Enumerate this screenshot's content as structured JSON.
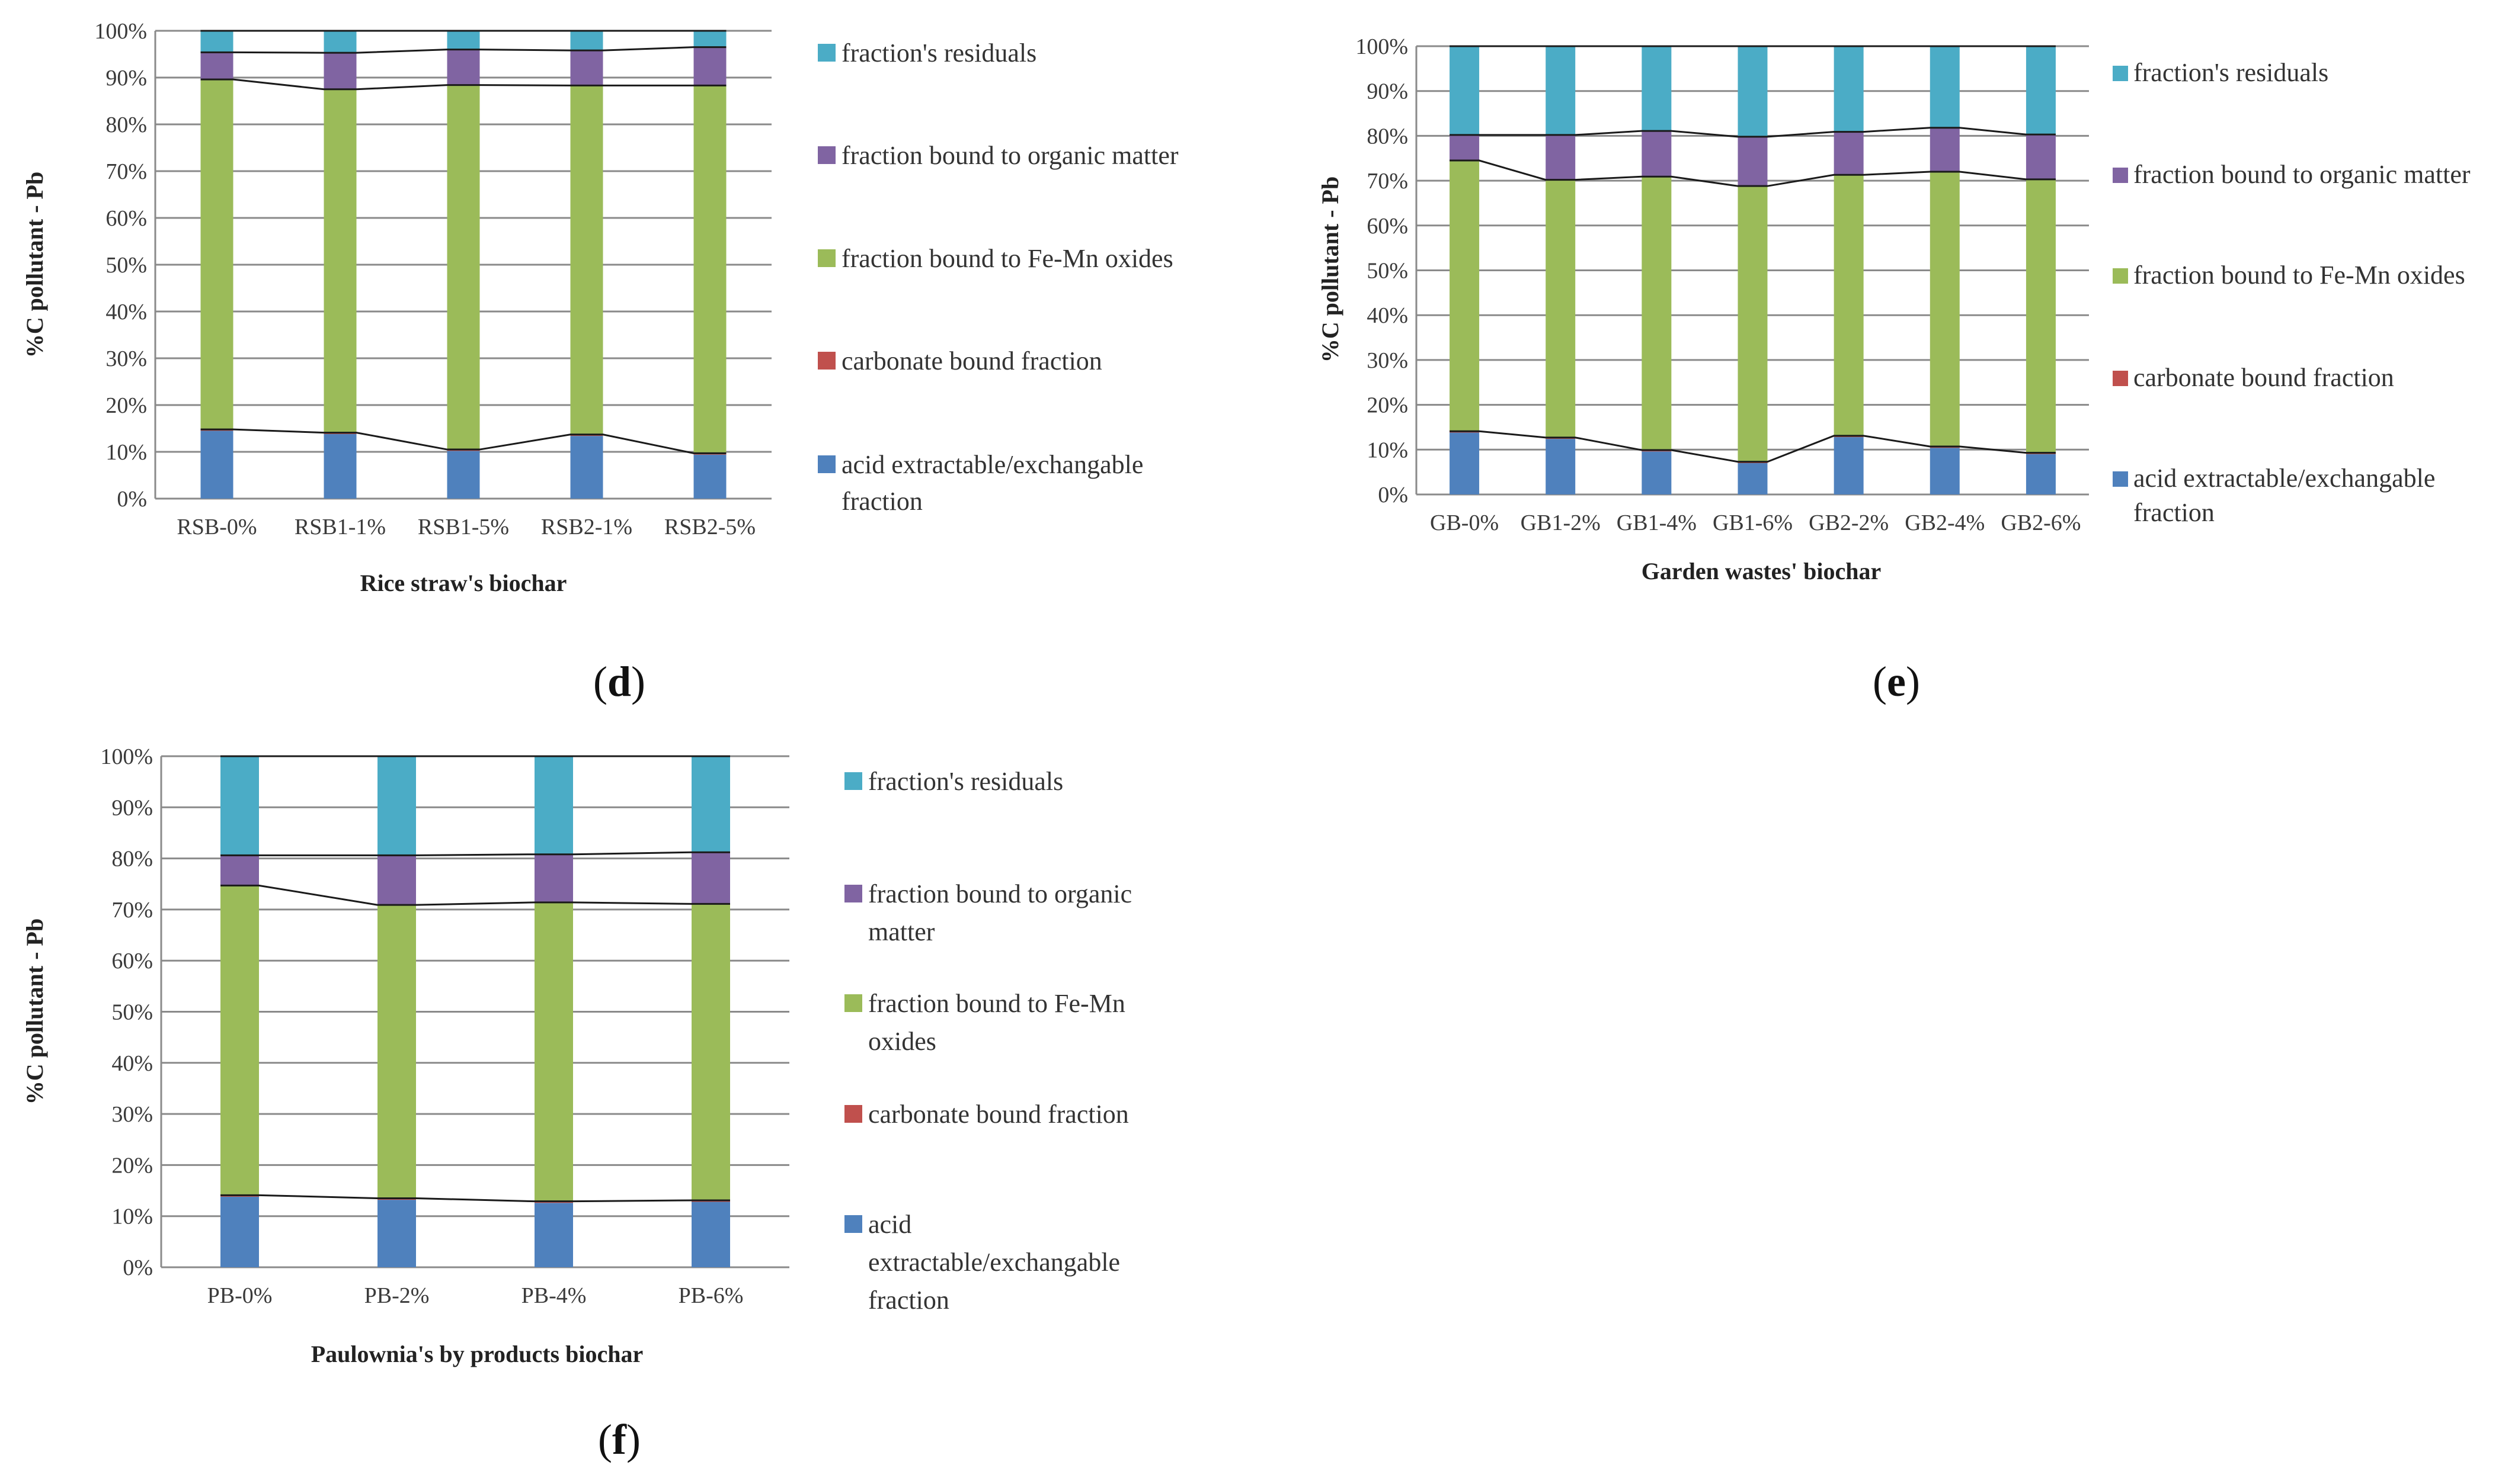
{
  "colors": {
    "residual": "#4BACC6",
    "organic": "#8064A2",
    "femn": "#9BBB59",
    "carbonate": "#C0504D",
    "acid": "#4F81BD",
    "grid": "#8a8a8a",
    "connector": "#1a1a1a"
  },
  "chart_data": [
    {
      "id": "d",
      "type": "bar",
      "stacked": true,
      "panel_label": {
        "open": "(",
        "letter": "d",
        "close": ")"
      },
      "title": "",
      "xlabel": "Rice straw's biochar",
      "ylabel": "%C pollutant - Pb",
      "ylim": [
        0,
        100
      ],
      "yticks": [
        "0%",
        "10%",
        "20%",
        "30%",
        "40%",
        "50%",
        "60%",
        "70%",
        "80%",
        "90%",
        "100%"
      ],
      "grid": true,
      "legend_position": "right",
      "categories": [
        "RSB-0%",
        "RSB1-1%",
        "RSB1-5%",
        "RSB2-1%",
        "RSB2-5%"
      ],
      "series": [
        {
          "key": "acid",
          "name": "acid extractable/exchangable fraction",
          "values": [
            14.5,
            13.8,
            10.2,
            13.4,
            9.4
          ]
        },
        {
          "key": "carbonate",
          "name": "carbonate bound fraction",
          "values": [
            0.3,
            0.3,
            0.3,
            0.3,
            0.3
          ]
        },
        {
          "key": "femn",
          "name": "fraction bound to Fe-Mn oxides",
          "values": [
            74.8,
            73.4,
            77.9,
            74.6,
            78.6
          ]
        },
        {
          "key": "organic",
          "name": "fraction bound to organic matter",
          "values": [
            5.8,
            7.8,
            7.6,
            7.5,
            8.2
          ]
        },
        {
          "key": "residual",
          "name": "fraction's residuals",
          "values": [
            4.6,
            4.7,
            4.0,
            4.2,
            3.5
          ]
        }
      ]
    },
    {
      "id": "e",
      "type": "bar",
      "stacked": true,
      "panel_label": {
        "open": "(",
        "letter": "e",
        "close": ")"
      },
      "title": "",
      "xlabel": "Garden wastes' biochar",
      "ylabel": "%C pollutant - Pb",
      "ylim": [
        0,
        100
      ],
      "yticks": [
        "0%",
        "10%",
        "20%",
        "30%",
        "40%",
        "50%",
        "60%",
        "70%",
        "80%",
        "90%",
        "100%"
      ],
      "grid": true,
      "legend_position": "right",
      "categories": [
        "GB-0%",
        "GB1-2%",
        "GB1-4%",
        "GB1-6%",
        "GB2-2%",
        "GB2-4%",
        "GB2-6%"
      ],
      "series": [
        {
          "key": "acid",
          "name": "acid extractable/exchangable fraction",
          "values": [
            13.8,
            12.4,
            9.6,
            7.0,
            12.8,
            10.4,
            9.0
          ]
        },
        {
          "key": "carbonate",
          "name": "carbonate bound fraction",
          "values": [
            0.3,
            0.3,
            0.3,
            0.3,
            0.3,
            0.3,
            0.3
          ]
        },
        {
          "key": "femn",
          "name": "fraction bound to Fe-Mn oxides",
          "values": [
            60.4,
            57.5,
            61.0,
            61.5,
            58.2,
            61.3,
            61.0
          ]
        },
        {
          "key": "organic",
          "name": "fraction bound to organic matter",
          "values": [
            5.7,
            10.0,
            10.2,
            11.0,
            9.6,
            9.8,
            10.0
          ]
        },
        {
          "key": "residual",
          "name": "fraction's residuals",
          "values": [
            19.8,
            19.8,
            18.9,
            20.2,
            19.1,
            18.2,
            19.7
          ]
        }
      ]
    },
    {
      "id": "f",
      "type": "bar",
      "stacked": true,
      "panel_label": {
        "open": "(",
        "letter": "f",
        "close": ")"
      },
      "title": "",
      "xlabel": "Paulownia's by products biochar",
      "ylabel": "%C pollutant - Pb",
      "ylim": [
        0,
        100
      ],
      "yticks": [
        "0%",
        "10%",
        "20%",
        "30%",
        "40%",
        "50%",
        "60%",
        "70%",
        "80%",
        "90%",
        "100%"
      ],
      "grid": true,
      "legend_position": "right",
      "categories": [
        "PB-0%",
        "PB-2%",
        "PB-4%",
        "PB-6%"
      ],
      "series": [
        {
          "key": "acid",
          "name": "acid extractable/exchangable fraction",
          "values": [
            13.8,
            13.2,
            12.6,
            12.8
          ]
        },
        {
          "key": "carbonate",
          "name": "carbonate bound fraction",
          "values": [
            0.3,
            0.3,
            0.3,
            0.3
          ]
        },
        {
          "key": "femn",
          "name": "fraction bound to Fe-Mn oxides",
          "values": [
            60.6,
            57.4,
            58.5,
            58.0
          ]
        },
        {
          "key": "organic",
          "name": "fraction bound to organic matter",
          "values": [
            5.9,
            9.7,
            9.4,
            10.1
          ]
        },
        {
          "key": "residual",
          "name": "fraction's residuals",
          "values": [
            19.4,
            19.4,
            19.2,
            18.8
          ]
        }
      ]
    }
  ]
}
